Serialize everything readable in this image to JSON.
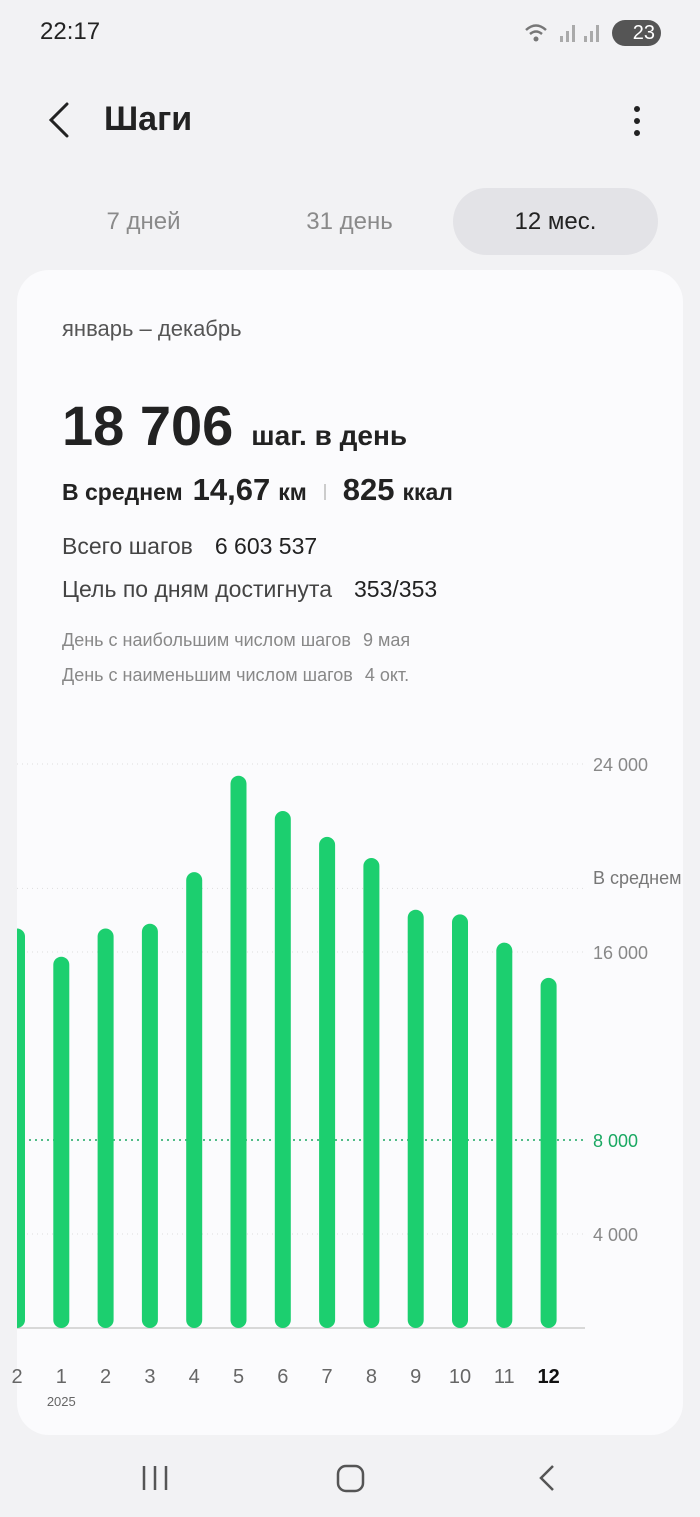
{
  "status_bar": {
    "time": "22:17",
    "battery": "23"
  },
  "header": {
    "title": "Шаги"
  },
  "tabs": [
    "7 дней",
    "31 день",
    "12 мес."
  ],
  "selected_tab": 2,
  "summary": {
    "period": "январь – декабрь",
    "average_steps": "18 706",
    "average_steps_unit": "шаг. в день",
    "average_label": "В среднем",
    "distance": "14,67",
    "distance_unit": "км",
    "calories": "825",
    "calories_unit": "ккал",
    "total_label": "Всего шагов",
    "total": "6 603 537",
    "goal_label": "Цель по дням достигнута",
    "goal": "353/353",
    "max_day_label": "День с наибольшим числом шагов",
    "max_day": "9 мая",
    "min_day_label": "День с наименьшим числом шагов",
    "min_day": "4 окт."
  },
  "chart_data": {
    "type": "bar",
    "categories": [
      "2",
      "1",
      "2",
      "3",
      "4",
      "5",
      "6",
      "7",
      "8",
      "9",
      "10",
      "11",
      "12"
    ],
    "year_label": "2025",
    "values": [
      17000,
      15800,
      17000,
      17200,
      19400,
      23500,
      22000,
      20900,
      20000,
      17800,
      17600,
      16400,
      14900
    ],
    "color": "#1ccf6f",
    "selected_category": 12,
    "ylim": [
      0,
      24000
    ],
    "yticks": [
      {
        "value": 4000,
        "label": "4 000"
      },
      {
        "value": 8000,
        "label": "8 000"
      },
      {
        "value": 16000,
        "label": "16 000"
      },
      {
        "value": 24000,
        "label": "24 000"
      }
    ],
    "goal_line": 8000,
    "average_line": {
      "value": 18706,
      "label": "В среднем"
    },
    "grid": true
  }
}
